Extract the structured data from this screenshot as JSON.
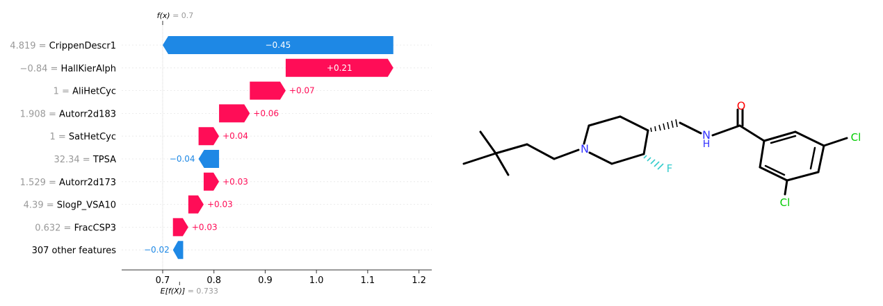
{
  "chart_data": {
    "type": "waterfall",
    "title": "",
    "xlabel": "",
    "ylabel": "",
    "fx_label": "f(x) = 0.7",
    "fx_value": 0.7,
    "efx_label": "E[f(X)] = 0.733",
    "base_value": 0.733,
    "xlim": [
      0.62,
      1.225
    ],
    "xticks": [
      0.7,
      0.8,
      0.9,
      1.0,
      1.1,
      1.2
    ],
    "xtick_labels": [
      "0.7",
      "0.8",
      "0.9",
      "1.0",
      "1.1",
      "1.2"
    ],
    "features": [
      {
        "value": "4.819",
        "name": "CrippenDescr1",
        "contribution": -0.45,
        "label": "−0.45"
      },
      {
        "value": "−0.84",
        "name": "HallKierAlph",
        "contribution": 0.21,
        "label": "+0.21"
      },
      {
        "value": "1",
        "name": "AliHetCyc",
        "contribution": 0.07,
        "label": "+0.07"
      },
      {
        "value": "1.908",
        "name": "Autorr2d183",
        "contribution": 0.06,
        "label": "+0.06"
      },
      {
        "value": "1",
        "name": "SatHetCyc",
        "contribution": 0.04,
        "label": "+0.04"
      },
      {
        "value": "32.34",
        "name": "TPSA",
        "contribution": -0.04,
        "label": "−0.04"
      },
      {
        "value": "1.529",
        "name": "Autorr2d173",
        "contribution": 0.03,
        "label": "+0.03"
      },
      {
        "value": "4.39",
        "name": "SlogP_VSA10",
        "contribution": 0.03,
        "label": "+0.03"
      },
      {
        "value": "0.632",
        "name": "FracCSP3",
        "contribution": 0.03,
        "label": "+0.03"
      },
      {
        "value": "",
        "name": "307 other features",
        "contribution": -0.02,
        "label": "−0.02"
      }
    ],
    "colors": {
      "positive": "#ff0d57",
      "negative": "#1e88e5",
      "label_gray": "#999999"
    }
  },
  "molecule": {
    "atoms": {
      "N_ring": "N",
      "N_amide": "N",
      "H_amide": "H",
      "O": "O",
      "F": "F",
      "Cl_top": "Cl",
      "Cl_bottom": "Cl"
    },
    "colors": {
      "N": "#3333ff",
      "O": "#ff0000",
      "F": "#33cccc",
      "Cl": "#00cc00",
      "bond": "#000000"
    }
  }
}
